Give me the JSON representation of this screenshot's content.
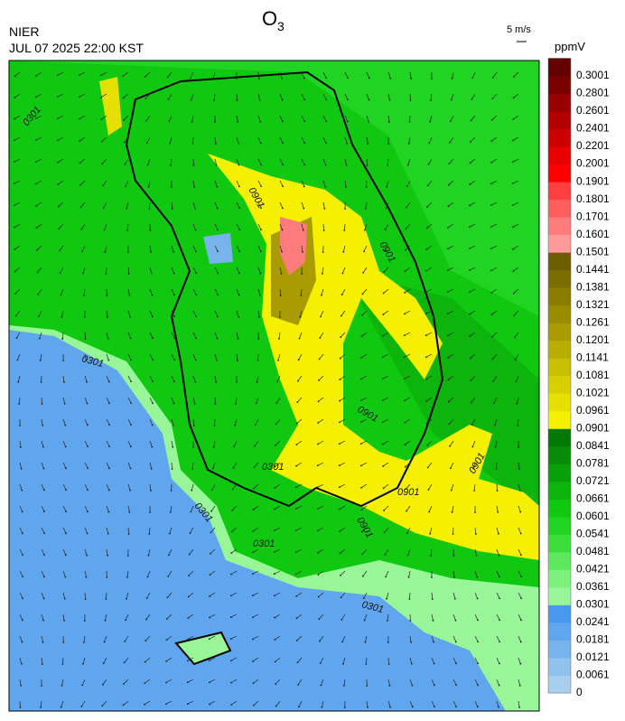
{
  "header": {
    "title": {
      "main": "O",
      "subscript": "3"
    },
    "agency": "NIER",
    "datetime": "JUL 07 2025 22:00 KST",
    "wind_scale": "5 m/s",
    "unit": "ppmV"
  },
  "colorbar": {
    "labels": [
      "0",
      "0.0061",
      "0.0121",
      "0.0181",
      "0.0241",
      "0.0301",
      "0.0361",
      "0.0421",
      "0.0481",
      "0.0541",
      "0.0601",
      "0.0661",
      "0.0721",
      "0.0781",
      "0.0841",
      "0.0901",
      "0.0961",
      "0.1021",
      "0.1081",
      "0.1141",
      "0.1201",
      "0.1261",
      "0.1321",
      "0.1381",
      "0.1441",
      "0.1501",
      "0.1601",
      "0.1701",
      "0.1801",
      "0.1901",
      "0.2001",
      "0.2201",
      "0.2401",
      "0.2601",
      "0.2801",
      "0.3001"
    ],
    "colors": [
      "#a8d0ee",
      "#90c2ec",
      "#78b4ec",
      "#60a6ee",
      "#4898f0",
      "#98f598",
      "#7ef07e",
      "#5ee85e",
      "#3cde3c",
      "#22d422",
      "#10c810",
      "#0cb40c",
      "#08a008",
      "#068c06",
      "#047804",
      "#f5f000",
      "#e6e000",
      "#d6d000",
      "#c8c000",
      "#b8ae00",
      "#a89c00",
      "#988c00",
      "#8a7e00",
      "#7a6e00",
      "#6a5e00",
      "#ff9a9a",
      "#ff7c7c",
      "#ff5e5e",
      "#ff4040",
      "#ff0000",
      "#e60000",
      "#cc0000",
      "#b00000",
      "#960000",
      "#7a0000",
      "#640000"
    ]
  },
  "map": {
    "contour_labels": [
      "0301",
      "0901",
      "0901",
      "0901",
      "0301",
      "0901",
      "0901",
      "0901",
      "0301",
      "0301",
      "0301",
      "0301"
    ]
  }
}
